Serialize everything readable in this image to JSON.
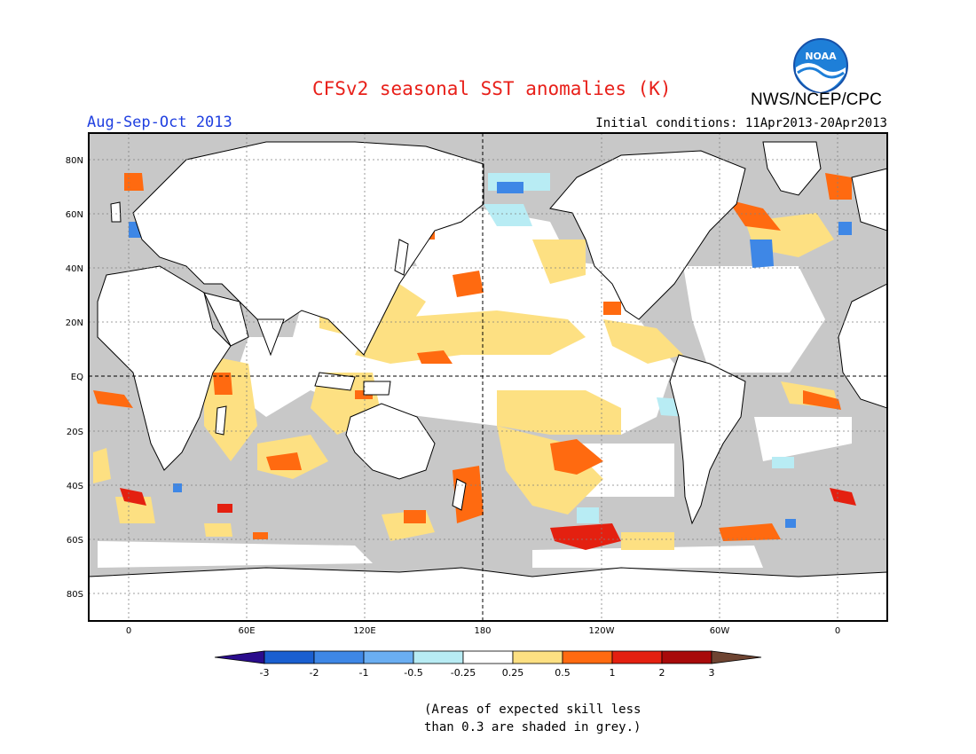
{
  "title": "CFSv2 seasonal SST anomalies (K)",
  "agency": "NWS/NCEP/CPC",
  "logo_text": "NOAA",
  "season": "Aug-Sep-Oct 2013",
  "initial_conditions": "Initial conditions: 11Apr2013-20Apr2013",
  "note_line1": "(Areas of expected skill less",
  "note_line2": "than 0.3 are shaded in grey.)",
  "map": {
    "lon_labels": [
      "0",
      "60E",
      "120E",
      "180",
      "120W",
      "60W",
      "0"
    ],
    "lat_labels": [
      "80N",
      "60N",
      "40N",
      "20N",
      "EQ",
      "20S",
      "40S",
      "60S",
      "80S"
    ],
    "land_color": "#ffffff",
    "low_skill_color": "#c8c8c8"
  },
  "colorbar": {
    "tick_labels": [
      "-3",
      "-2",
      "-1",
      "-0.5",
      "-0.25",
      "0.25",
      "0.5",
      "1",
      "2",
      "3"
    ],
    "colors": [
      "#2a0c8c",
      "#1a5fd0",
      "#3e87e6",
      "#6aaef2",
      "#b8ecf4",
      "#ffffff",
      "#fde082",
      "#ff6a10",
      "#e42010",
      "#a80a0a",
      "#6e4432"
    ]
  }
}
